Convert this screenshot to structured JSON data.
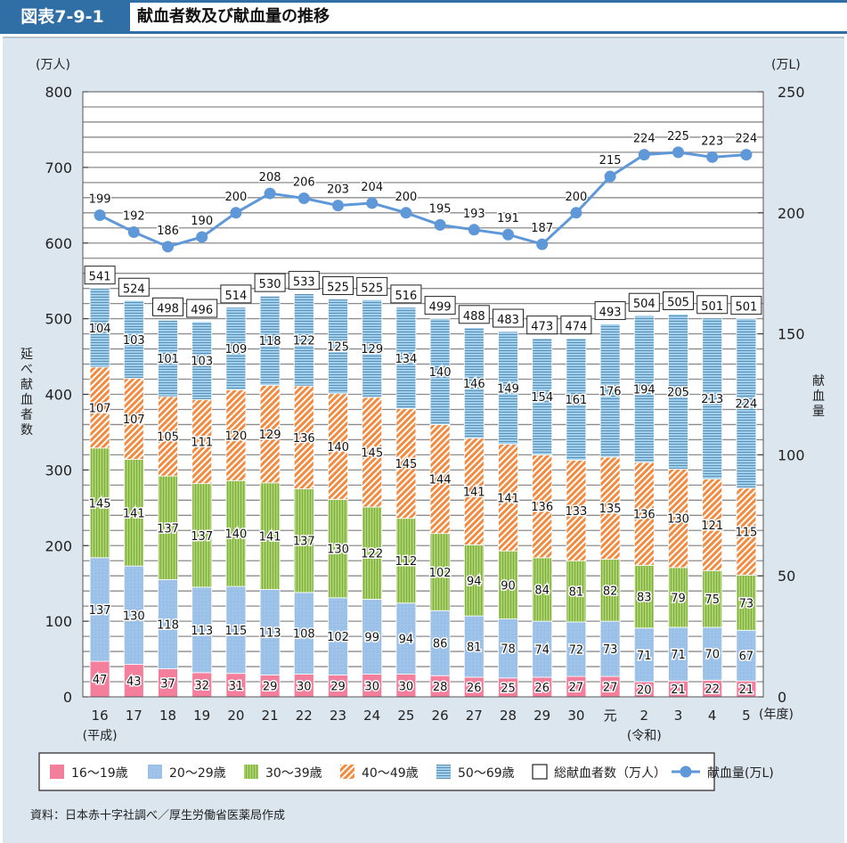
{
  "header": {
    "figure_number": "図表7-9-1",
    "title": "献血者数及び献血量の推移"
  },
  "source_note": "資料：日本赤十字社調べ／厚生労働省医薬局作成",
  "colors": {
    "header_bg": "#2f6fa5",
    "panel_bg": "#dbe6ef",
    "age_16_19": "#f37f9d",
    "age_20_29": "#9cc1e8",
    "age_30_39": "#9dc85e",
    "age_40_49": "#f28a40",
    "age_50_69": "#8cc6e8",
    "line": "#5f98d9"
  },
  "chart_data": {
    "type": "bar",
    "stacked": true,
    "title": "献血者数及び献血量の推移",
    "categories": [
      "16",
      "17",
      "18",
      "19",
      "20",
      "21",
      "22",
      "23",
      "24",
      "25",
      "26",
      "27",
      "28",
      "29",
      "30",
      "元",
      "2",
      "3",
      "4",
      "5"
    ],
    "category_notes": [
      {
        "category": "16",
        "note": "(平成)"
      },
      {
        "category": "2",
        "note": "(令和)"
      }
    ],
    "x_unit": "(年度)",
    "ylabel_left": "延べ献血者数",
    "yunit_left": "(万人)",
    "ylim_left": [
      0,
      800
    ],
    "yticks_left": [
      0,
      100,
      200,
      300,
      400,
      500,
      600,
      700,
      800
    ],
    "ylabel_right": "献血量",
    "yunit_right": "(万L)",
    "ylim_right": [
      0,
      250
    ],
    "yticks_right": [
      0,
      50,
      100,
      150,
      200,
      250
    ],
    "grid": true,
    "grid_step_left": 20,
    "series": [
      {
        "name": "16〜19歳",
        "key": "age_16_19",
        "pattern": "solid",
        "values": [
          47,
          43,
          37,
          32,
          31,
          29,
          30,
          29,
          30,
          30,
          28,
          26,
          25,
          26,
          27,
          27,
          20,
          21,
          22,
          21
        ]
      },
      {
        "name": "20〜29歳",
        "key": "age_20_29",
        "pattern": "dots",
        "values": [
          137,
          130,
          118,
          113,
          115,
          113,
          108,
          102,
          99,
          94,
          86,
          81,
          78,
          74,
          72,
          73,
          71,
          71,
          70,
          67
        ]
      },
      {
        "name": "30〜39歳",
        "key": "age_30_39",
        "pattern": "vertical",
        "values": [
          145,
          141,
          137,
          137,
          140,
          141,
          137,
          130,
          122,
          112,
          102,
          94,
          90,
          84,
          81,
          82,
          83,
          79,
          75,
          73
        ]
      },
      {
        "name": "40〜49歳",
        "key": "age_40_49",
        "pattern": "diagonal",
        "values": [
          107,
          107,
          105,
          111,
          120,
          129,
          136,
          140,
          145,
          145,
          144,
          141,
          141,
          136,
          133,
          135,
          136,
          130,
          121,
          115
        ]
      },
      {
        "name": "50〜69歳",
        "key": "age_50_69",
        "pattern": "horizontal",
        "values": [
          104,
          103,
          101,
          103,
          109,
          118,
          122,
          125,
          129,
          134,
          140,
          146,
          149,
          154,
          161,
          176,
          194,
          205,
          213,
          224
        ]
      }
    ],
    "totals": {
      "name": "総献血者数（万人）",
      "values": [
        541,
        524,
        498,
        496,
        514,
        530,
        533,
        525,
        525,
        516,
        499,
        488,
        483,
        473,
        474,
        493,
        504,
        505,
        501,
        501
      ]
    },
    "line_series": {
      "name": "献血量(万L)",
      "axis": "right",
      "values": [
        199,
        192,
        186,
        190,
        200,
        208,
        206,
        203,
        204,
        200,
        195,
        193,
        191,
        187,
        200,
        215,
        224,
        225,
        223,
        224
      ]
    },
    "legend": {
      "placement": "bottom",
      "items": [
        "16〜19歳",
        "20〜29歳",
        "30〜39歳",
        "40〜49歳",
        "50〜69歳",
        "総献血者数（万人）",
        "献血量(万L)"
      ]
    }
  }
}
